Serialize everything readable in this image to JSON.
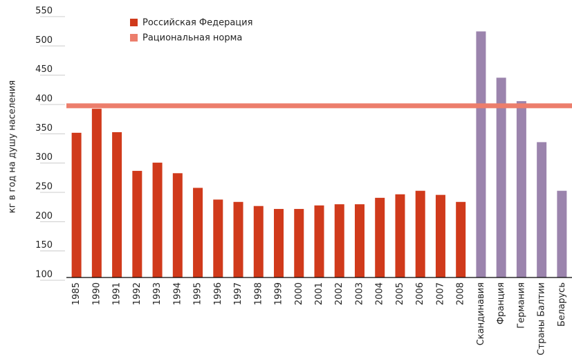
{
  "chart_data": {
    "type": "bar",
    "y_label": "кг в год на душу населения",
    "categories": [
      "1985",
      "1990",
      "1991",
      "1992",
      "1993",
      "1994",
      "1995",
      "1996",
      "1997",
      "1998",
      "1999",
      "2000",
      "2001",
      "2002",
      "2003",
      "2004",
      "2005",
      "2006",
      "2007",
      "2008",
      "Скандинавия",
      "Франция",
      "Германия",
      "Страны Балтии",
      "Беларусь"
    ],
    "series": [
      {
        "name": "Российская Федерация",
        "color": "#d03a1b",
        "values": [
          347,
          388,
          348,
          282,
          296,
          278,
          253,
          233,
          229,
          222,
          217,
          217,
          223,
          225,
          225,
          236,
          242,
          248,
          241,
          229,
          null,
          null,
          null,
          null,
          null
        ]
      },
      {
        "color": "#9b84ad",
        "values": [
          null,
          null,
          null,
          null,
          null,
          null,
          null,
          null,
          null,
          null,
          null,
          null,
          null,
          null,
          null,
          null,
          null,
          null,
          null,
          null,
          520,
          441,
          401,
          331,
          248
        ]
      }
    ],
    "reference_line": {
      "name": "Рациональная норма",
      "value": 393,
      "color": "#ec7e6c"
    },
    "ylim": [
      100,
      550
    ],
    "yticks": [
      100,
      150,
      200,
      250,
      300,
      350,
      400,
      450,
      500,
      550
    ]
  }
}
